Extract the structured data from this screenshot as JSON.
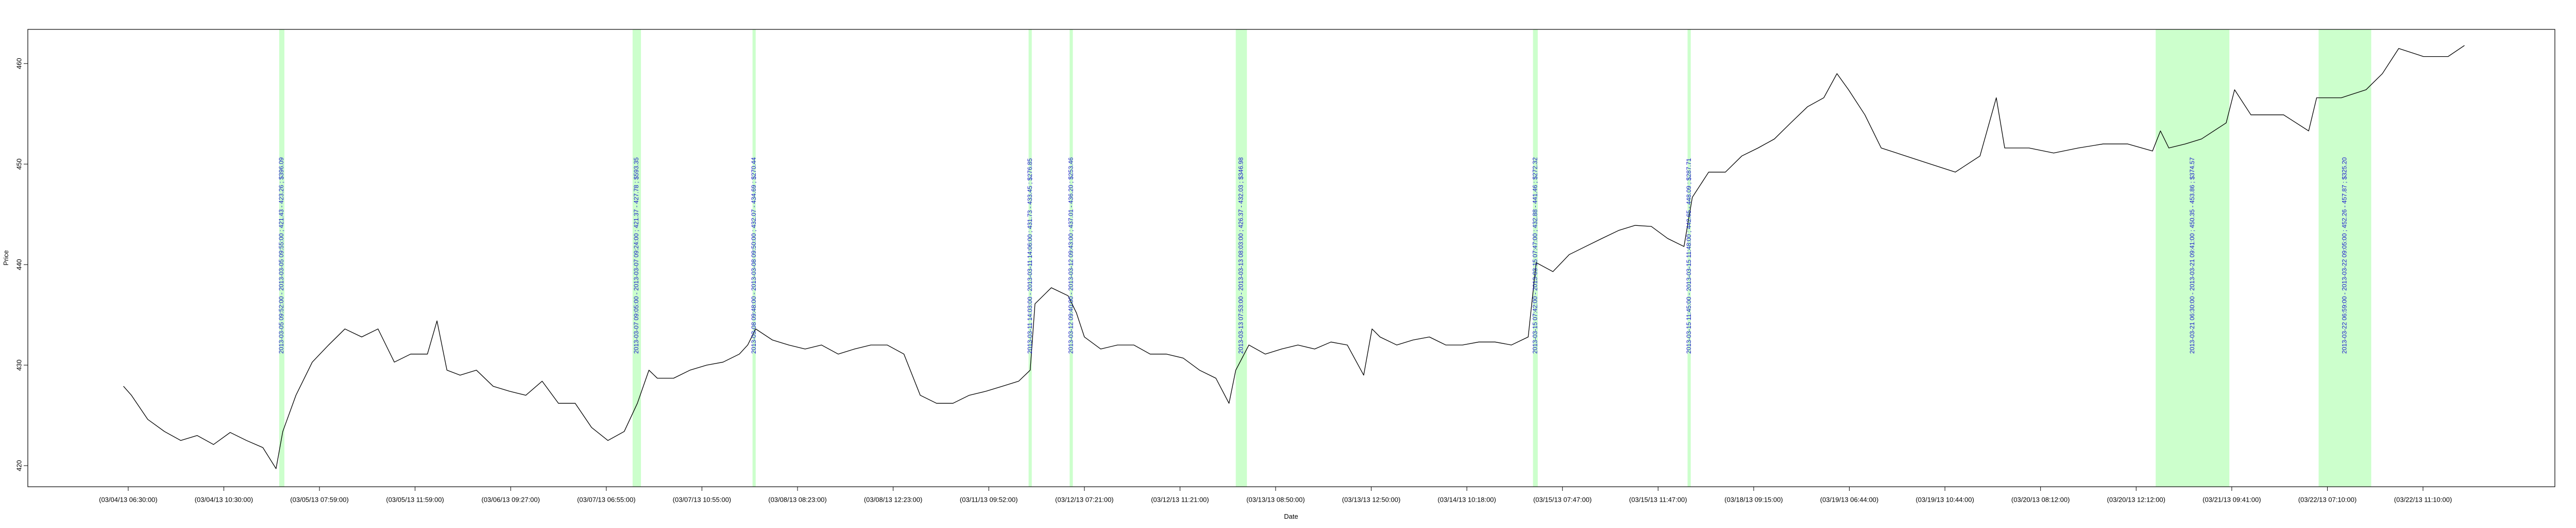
{
  "chart_data": {
    "type": "line",
    "xlabel": "Date",
    "ylabel": "Price",
    "color": "#000000",
    "highlight_color": "#ccffcc",
    "annotation_color": "#1a1acc",
    "xlim": [
      -252,
      6091
    ],
    "ylim": [
      417.9,
      463.4
    ],
    "yticks": [
      420,
      430,
      440,
      450,
      460
    ],
    "xticks": [
      {
        "value": 0,
        "label": "(03/04/13 06:30:00)"
      },
      {
        "value": 240,
        "label": "(03/04/13 10:30:00)"
      },
      {
        "value": 480,
        "label": "(03/05/13 07:59:00)"
      },
      {
        "value": 720,
        "label": "(03/05/13 11:59:00)"
      },
      {
        "value": 960,
        "label": "(03/06/13 09:27:00)"
      },
      {
        "value": 1200,
        "label": "(03/07/13 06:55:00)"
      },
      {
        "value": 1440,
        "label": "(03/07/13 10:55:00)"
      },
      {
        "value": 1680,
        "label": "(03/08/13 08:23:00)"
      },
      {
        "value": 1920,
        "label": "(03/08/13 12:23:00)"
      },
      {
        "value": 2160,
        "label": "(03/11/13 09:52:00)"
      },
      {
        "value": 2400,
        "label": "(03/12/13 07:21:00)"
      },
      {
        "value": 2640,
        "label": "(03/12/13 11:21:00)"
      },
      {
        "value": 2880,
        "label": "(03/13/13 08:50:00)"
      },
      {
        "value": 3120,
        "label": "(03/13/13 12:50:00)"
      },
      {
        "value": 3360,
        "label": "(03/14/13 10:18:00)"
      },
      {
        "value": 3600,
        "label": "(03/15/13 07:47:00)"
      },
      {
        "value": 3840,
        "label": "(03/15/13 11:47:00)"
      },
      {
        "value": 4080,
        "label": "(03/18/13 09:15:00)"
      },
      {
        "value": 4320,
        "label": "(03/19/13 06:44:00)"
      },
      {
        "value": 4560,
        "label": "(03/19/13 10:44:00)"
      },
      {
        "value": 4800,
        "label": "(03/20/13 08:12:00)"
      },
      {
        "value": 5040,
        "label": "(03/20/13 12:12:00)"
      },
      {
        "value": 5280,
        "label": "(03/21/13 09:41:00)"
      },
      {
        "value": 5520,
        "label": "(03/22/13 07:10:00)"
      },
      {
        "value": 5760,
        "label": "(03/22/13 11:10:00)"
      }
    ],
    "x": [
      -12,
      8,
      49,
      91,
      132,
      173,
      214,
      256,
      297,
      338,
      371,
      388,
      421,
      462,
      503,
      544,
      586,
      627,
      668,
      709,
      751,
      775,
      800,
      833,
      874,
      916,
      957,
      998,
      1039,
      1080,
      1122,
      1163,
      1204,
      1245,
      1278,
      1307,
      1328,
      1369,
      1410,
      1452,
      1493,
      1534,
      1555,
      1575,
      1617,
      1658,
      1699,
      1740,
      1782,
      1823,
      1864,
      1905,
      1947,
      1988,
      2029,
      2070,
      2111,
      2153,
      2194,
      2235,
      2264,
      2276,
      2317,
      2359,
      2380,
      2400,
      2441,
      2483,
      2524,
      2565,
      2606,
      2648,
      2689,
      2730,
      2763,
      2780,
      2813,
      2854,
      2895,
      2936,
      2978,
      3019,
      3060,
      3101,
      3122,
      3142,
      3184,
      3225,
      3266,
      3307,
      3349,
      3390,
      3431,
      3472,
      3514,
      3534,
      3576,
      3617,
      3658,
      3699,
      3741,
      3782,
      3823,
      3864,
      3905,
      3926,
      3967,
      4009,
      4050,
      4091,
      4132,
      4173,
      4215,
      4256,
      4289,
      4318,
      4359,
      4400,
      4462,
      4524,
      4586,
      4648,
      4689,
      4710,
      4771,
      4833,
      4895,
      4957,
      5019,
      5081,
      5101,
      5122,
      5163,
      5204,
      5266,
      5287,
      5328,
      5410,
      5473,
      5493,
      5555,
      5617,
      5658,
      5699,
      5761,
      5823,
      5864
    ],
    "values": [
      427.9,
      427.0,
      424.6,
      423.4,
      422.5,
      423.0,
      422.1,
      423.3,
      422.5,
      421.8,
      419.7,
      423.4,
      427.0,
      430.3,
      432.0,
      433.6,
      432.8,
      433.6,
      430.3,
      431.1,
      431.1,
      434.4,
      429.5,
      429.0,
      429.5,
      427.9,
      427.4,
      427.0,
      428.4,
      426.2,
      426.2,
      423.8,
      422.5,
      423.4,
      426.2,
      429.5,
      428.7,
      428.7,
      429.5,
      430.0,
      430.3,
      431.1,
      432.0,
      433.6,
      432.5,
      432.0,
      431.6,
      432.0,
      431.1,
      431.6,
      432.0,
      432.0,
      431.1,
      427.0,
      426.2,
      426.2,
      427.0,
      427.4,
      427.9,
      428.4,
      429.5,
      436.1,
      437.7,
      436.9,
      435.2,
      432.8,
      431.6,
      432.0,
      432.0,
      431.1,
      431.1,
      430.7,
      429.5,
      428.7,
      426.2,
      429.5,
      432.0,
      431.1,
      431.6,
      432.0,
      431.6,
      432.3,
      432.0,
      429.0,
      433.6,
      432.8,
      432.0,
      432.5,
      432.8,
      432.0,
      432.0,
      432.3,
      432.3,
      432.0,
      432.8,
      440.2,
      439.3,
      441.0,
      441.8,
      442.6,
      443.4,
      443.9,
      443.8,
      442.6,
      441.8,
      446.7,
      449.2,
      449.2,
      450.8,
      451.6,
      452.5,
      454.1,
      455.7,
      456.6,
      459.0,
      457.4,
      454.9,
      451.6,
      450.8,
      450.0,
      449.2,
      450.8,
      456.6,
      451.6,
      451.6,
      451.1,
      451.6,
      452.0,
      452.0,
      451.3,
      453.3,
      451.6,
      452.0,
      452.5,
      454.1,
      457.4,
      454.9,
      454.9,
      453.3,
      456.6,
      456.6,
      457.4,
      459.0,
      461.5,
      460.7,
      460.7,
      461.8
    ],
    "highlights": [
      {
        "start": 379,
        "end": 392,
        "label": "2013-03-05 09:52:00 - 2013-03-05 09:55:00 ; 421.43 - 423.26 ; $396.09"
      },
      {
        "start": 1266,
        "end": 1287,
        "label": "2013-03-07 09:05:00 - 2013-03-07 09:24:00 ; 421.37 - 427.78 ; $593.35"
      },
      {
        "start": 1567,
        "end": 1575,
        "label": "2013-03-08 09:48:00 - 2013-03-08 09:50:00 ; 432.07 - 434.69 ; $270.44"
      },
      {
        "start": 2260,
        "end": 2268,
        "label": "2013-03-11 14:03:00 - 2013-03-11 14:06:00 ; 431.73 - 433.45 ; $276.85"
      },
      {
        "start": 2363,
        "end": 2371,
        "label": "2013-03-12 09:40:00 - 2013-03-12 09:43:00 ; 437.01 - 436.20 ; $253.46"
      },
      {
        "start": 2780,
        "end": 2808,
        "label": "2013-03-13 07:53:00 - 2013-03-13 08:03:00 ; 426.37 - 432.03 ; $346.98"
      },
      {
        "start": 3526,
        "end": 3538,
        "label": "2013-03-15 07:42:00 - 2013-03-15 07:47:00 ; 432.88 - 441.46 ; $272.32"
      },
      {
        "start": 3914,
        "end": 3922,
        "label": "2013-03-15 11:45:00 - 2013-03-15 11:48:00 ; 442.65 - 448.09 ; $287.71"
      },
      {
        "start": 5089,
        "end": 5274,
        "label": "2013-03-21 06:30:00 - 2013-03-21 09:41:00 ; 450.35 - 453.86 ; $374.57"
      },
      {
        "start": 5498,
        "end": 5630,
        "label": "2013-03-22 06:59:00 - 2013-03-22 09:05:00 ; 452.26 - 457.87 ; $325.20"
      }
    ]
  }
}
